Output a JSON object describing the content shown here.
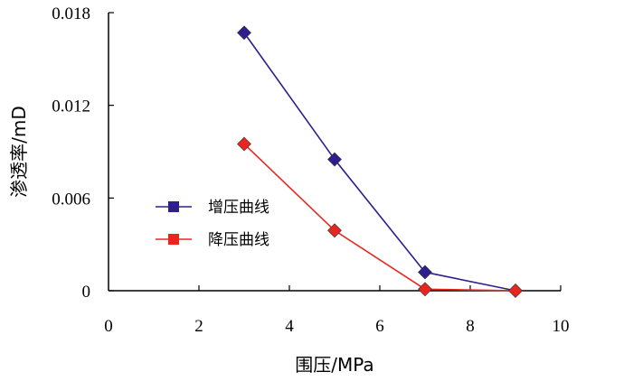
{
  "chart_data": {
    "type": "line",
    "xlabel": "围压/MPa",
    "ylabel": "渗透率/mD",
    "xlim": [
      0,
      10
    ],
    "ylim": [
      0,
      0.018
    ],
    "xticks": [
      "0",
      "2",
      "4",
      "6",
      "8",
      "10"
    ],
    "yticks": [
      "0",
      "0.006",
      "0.012",
      "0.018"
    ],
    "grid": false,
    "legend_position": "center-left",
    "series": [
      {
        "name": "增压曲线",
        "color": "#2e1f8c",
        "marker": "diamond",
        "x": [
          3,
          5,
          7,
          9
        ],
        "y": [
          0.0167,
          0.0085,
          0.0012,
          0.0
        ]
      },
      {
        "name": "降压曲线",
        "color": "#e8261f",
        "marker": "diamond",
        "x": [
          3,
          5,
          7,
          9
        ],
        "y": [
          0.0095,
          0.0039,
          0.0001,
          0.0
        ]
      }
    ]
  }
}
